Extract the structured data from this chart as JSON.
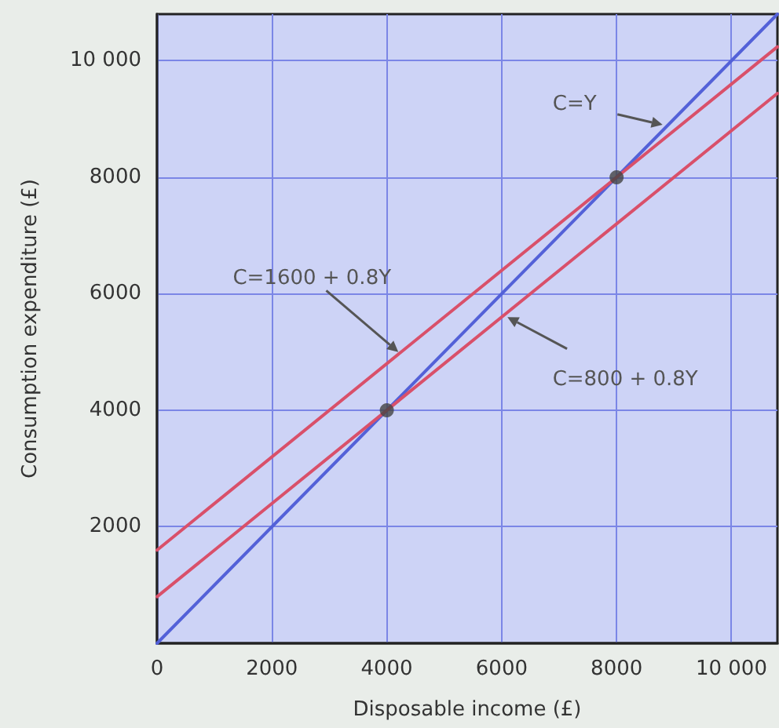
{
  "chart_data": {
    "type": "line",
    "xlabel": "Disposable income (£)",
    "ylabel": "Consumption expenditure (£)",
    "xlim": [
      0,
      10800
    ],
    "ylim": [
      0,
      10800
    ],
    "xticks": [
      0,
      2000,
      4000,
      6000,
      8000,
      {
        "value": 10000,
        "label": "10 000"
      }
    ],
    "yticks": [
      2000,
      4000,
      6000,
      8000,
      {
        "value": 10000,
        "label": "10 000"
      }
    ],
    "grid": true,
    "marker": "none",
    "line_style": "solid",
    "series": [
      {
        "color": "#5361d8",
        "x": [
          0,
          10800
        ],
        "values": [
          0,
          10800
        ]
      },
      {
        "color": "#d9506a",
        "x": [
          0,
          10800
        ],
        "values": [
          1600,
          10240
        ]
      },
      {
        "color": "#d9506a",
        "x": [
          0,
          10800
        ],
        "values": [
          800,
          9440
        ]
      },
      {
        "type": "scatter",
        "color": "#444444",
        "marker": "circle",
        "x": [
          4000,
          8000
        ],
        "values": [
          4000,
          8000
        ]
      }
    ],
    "annotations": [
      {
        "text": "C=Y",
        "x": 8800,
        "y": 8900
      },
      {
        "text": "C=1600 + 0.8Y",
        "x": 4200,
        "y": 5000
      },
      {
        "text": "C=800 + 0.8Y",
        "x": 6100,
        "y": 5600
      }
    ]
  }
}
